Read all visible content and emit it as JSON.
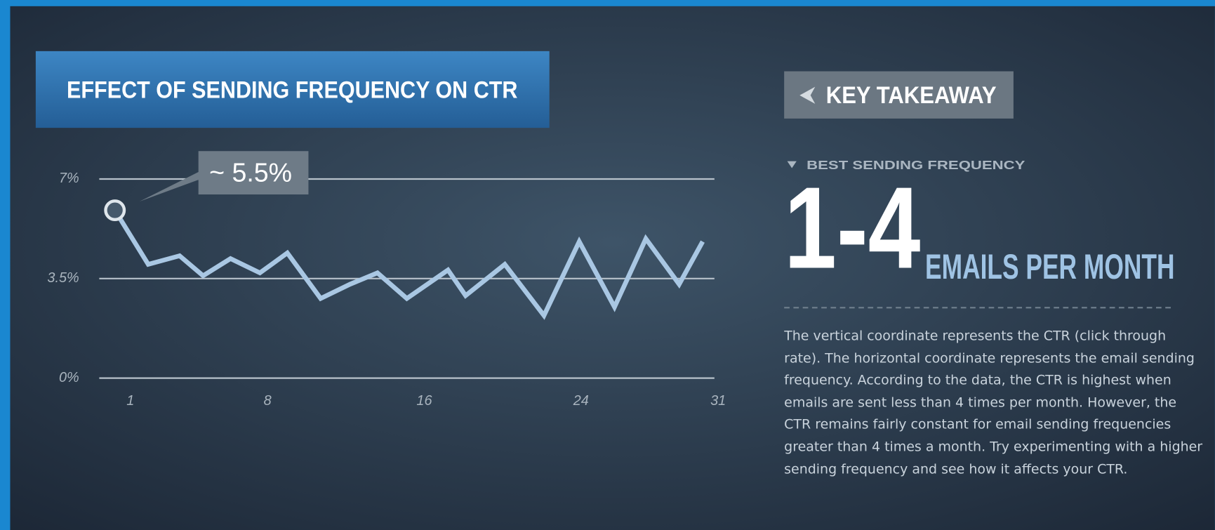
{
  "chart_data": {
    "type": "line",
    "title": "EFFECT OF SENDING FREQUENCY ON CTR",
    "annotation": "~ 5.5%",
    "x": [
      1,
      2.7,
      4.3,
      5.5,
      6.9,
      8.4,
      9.8,
      11.5,
      13,
      14.4,
      15.9,
      18,
      18.9,
      20.9,
      22.9,
      24.7,
      26.5,
      28.1,
      29.8,
      31
    ],
    "series": [
      {
        "color": "#a9c7e3",
        "values": [
          5.9,
          4.0,
          4.3,
          3.6,
          4.2,
          3.7,
          4.4,
          2.8,
          3.3,
          3.7,
          2.8,
          3.8,
          2.9,
          4.0,
          2.2,
          4.8,
          2.5,
          4.9,
          3.3,
          4.8
        ]
      }
    ],
    "xlim": [
      0.2,
      31.6
    ],
    "ylim": [
      0,
      7
    ],
    "xticks": [
      1,
      8,
      16,
      24,
      31
    ],
    "yticks": [
      {
        "value": 0,
        "label": "0%"
      },
      {
        "value": 3.5,
        "label": "3.5%"
      },
      {
        "value": 7,
        "label": "7%"
      }
    ],
    "grid": true
  },
  "key_takeaway": {
    "heading": "KEY TAKEAWAY",
    "subheading": "BEST SENDING FREQUENCY",
    "big_number": "1-4",
    "unit": "EMAILS PER MONTH",
    "description": "The vertical coordinate represents the CTR (click through rate). The horizontal coordinate represents the email sending frequency. According to the data, the CTR is highest when emails are sent less than 4 times per month. However, the CTR remains fairly constant for email sending frequencies greater than 4 times a month. Try experimenting with a higher sending frequency and see how it affects your CTR."
  }
}
